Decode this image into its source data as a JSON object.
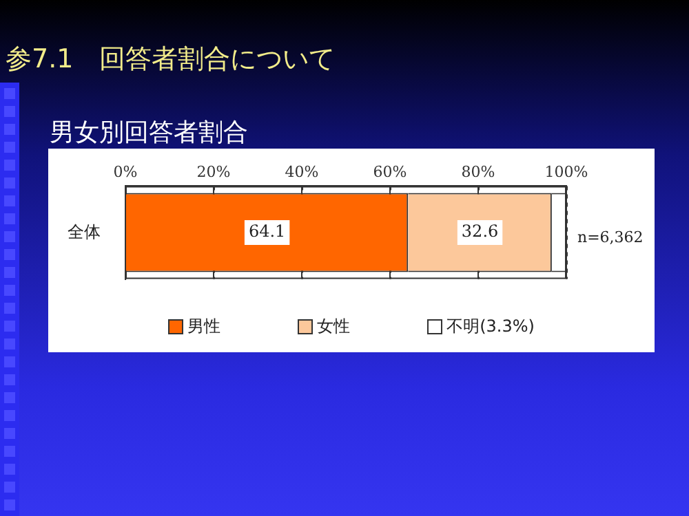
{
  "chart_data": {
    "type": "bar",
    "orientation": "horizontal",
    "stacked": true,
    "title": "参7.1　回答者割合について",
    "subtitle": "男女別回答者割合",
    "categories": [
      "全体"
    ],
    "series": [
      {
        "name": "男性",
        "color": "#ff6600",
        "values": [
          64.1
        ],
        "value_labels": [
          "64.1"
        ]
      },
      {
        "name": "女性",
        "color": "#fcc89b",
        "values": [
          32.6
        ],
        "value_labels": [
          "32.6"
        ]
      },
      {
        "name": "不明(3.3%)",
        "color": "#ffffff",
        "values": [
          3.3
        ],
        "value_labels": [
          null
        ]
      }
    ],
    "xlim": [
      0,
      100
    ],
    "xticks": [
      {
        "value": 0,
        "label": "0%"
      },
      {
        "value": 20,
        "label": "20%"
      },
      {
        "value": 40,
        "label": "40%"
      },
      {
        "value": 60,
        "label": "60%"
      },
      {
        "value": 80,
        "label": "80%"
      },
      {
        "value": 100,
        "label": "100%"
      }
    ],
    "grid": "x",
    "legend": "bottom",
    "annotations": [
      "n=6,362"
    ]
  }
}
